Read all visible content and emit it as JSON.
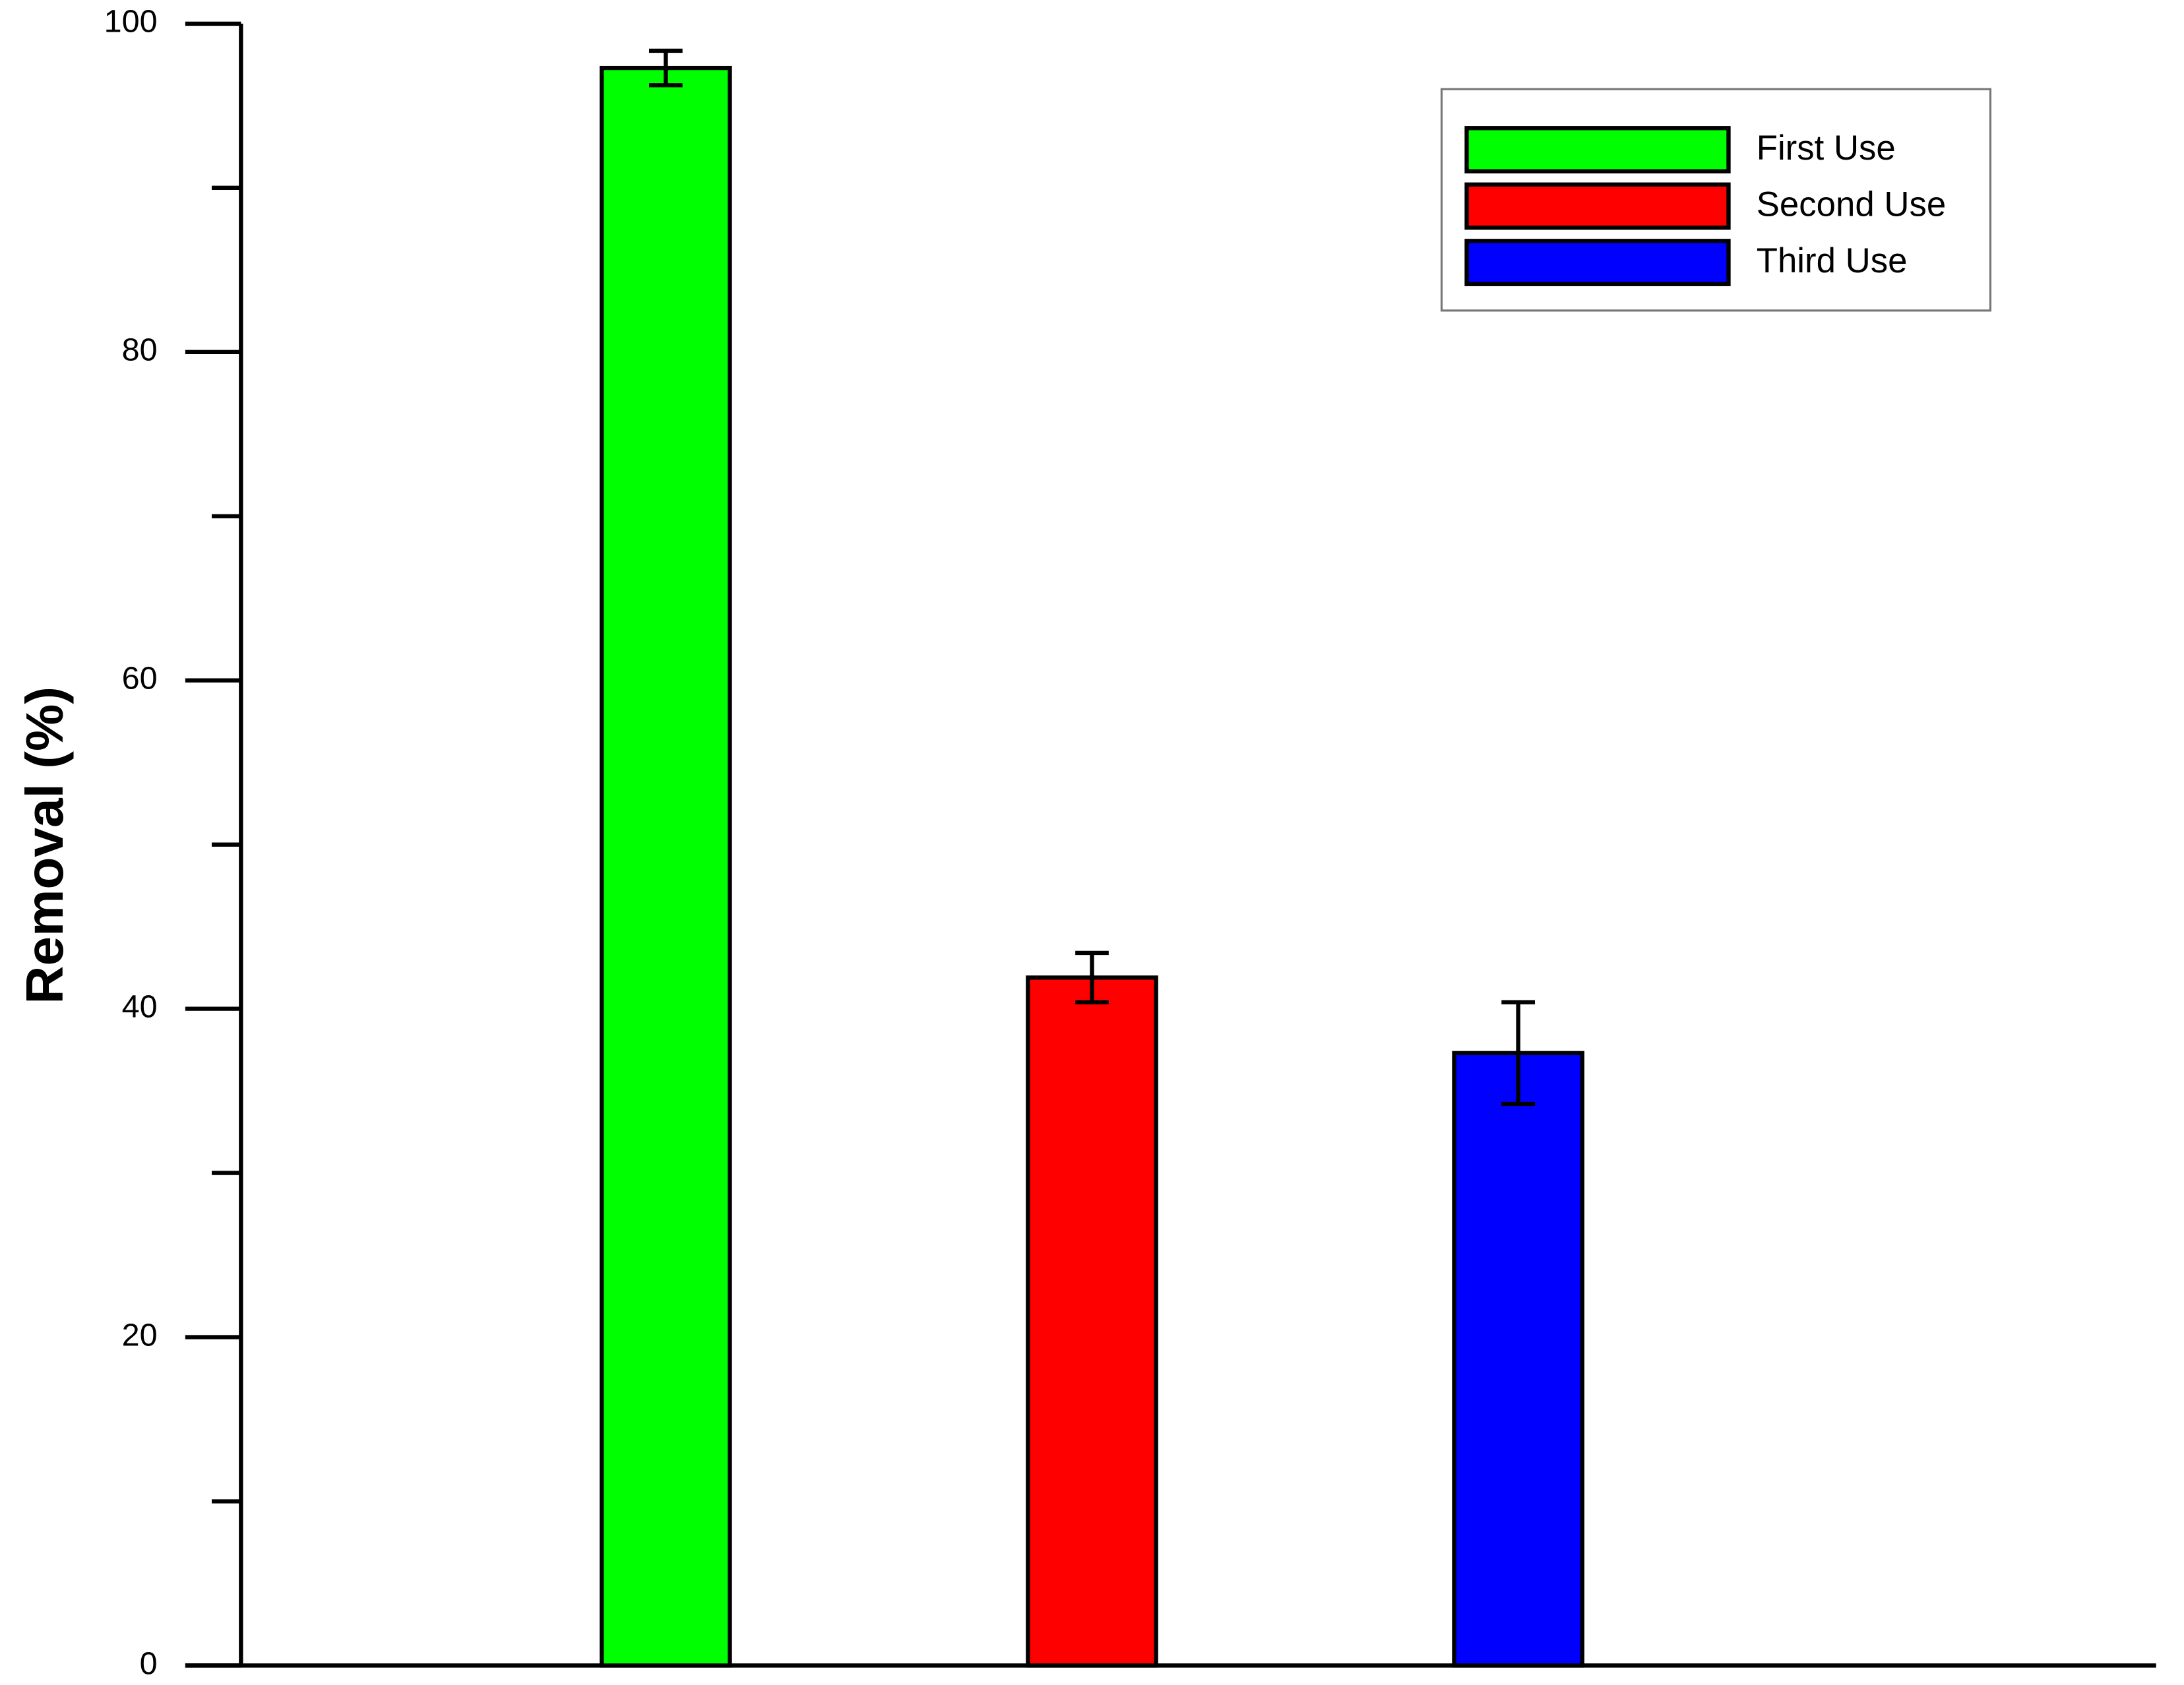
{
  "chart_data": {
    "type": "bar",
    "y_label": "Removal (%)",
    "ylim": [
      0,
      100
    ],
    "yticks": [
      0,
      20,
      40,
      60,
      80,
      100
    ],
    "yminor_ticks": [
      10,
      30,
      50,
      70,
      90
    ],
    "legend": "upper right",
    "series": [
      {
        "name": "First Use",
        "color": "#00ff00",
        "values": [
          97.3
        ],
        "errors": [
          1.05
        ]
      },
      {
        "name": "Second Use",
        "color": "#ff0000",
        "values": [
          41.9
        ],
        "errors": [
          1.5
        ]
      },
      {
        "name": "Third Use",
        "color": "#0000ff",
        "values": [
          37.3
        ],
        "errors": [
          3.1
        ]
      }
    ]
  }
}
